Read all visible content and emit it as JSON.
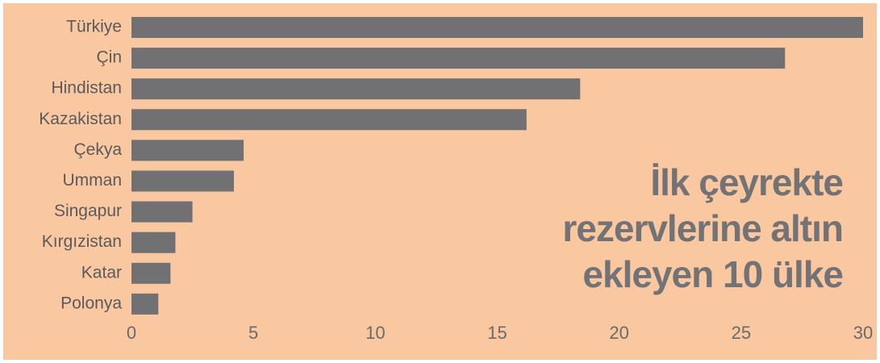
{
  "chart_data": {
    "type": "bar",
    "orientation": "horizontal",
    "title": "İlk çeyrekte\nrezervlerine altın\nekleyen 10 ülke",
    "categories": [
      "Türkiye",
      "Çin",
      "Hindistan",
      "Kazakistan",
      "Çekya",
      "Umman",
      "Singapur",
      "Kırgızistan",
      "Katar",
      "Polonya"
    ],
    "values": [
      30.0,
      26.8,
      18.4,
      16.2,
      4.6,
      4.2,
      2.5,
      1.8,
      1.6,
      1.1
    ],
    "color": "#717073",
    "xlim": [
      0,
      30
    ],
    "xticks": [
      0,
      5,
      10,
      15,
      20,
      25,
      30
    ],
    "grid": false
  }
}
